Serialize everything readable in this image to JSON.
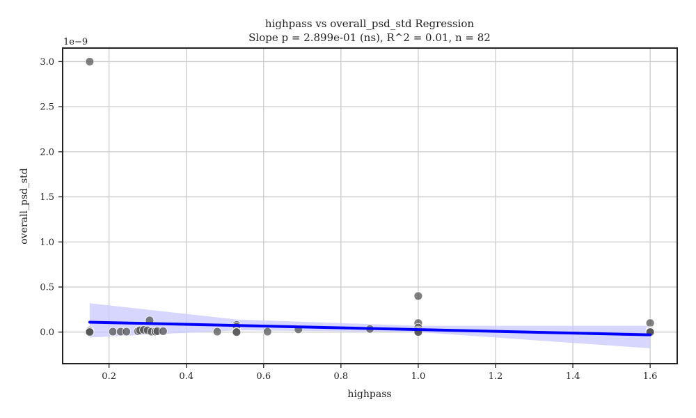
{
  "chart_data": {
    "type": "scatter",
    "title": "highpass vs overall_psd_std Regression",
    "subtitle": "Slope p = 2.899e-01 (ns), R^2 = 0.01, n = 82",
    "xlabel": "highpass",
    "ylabel": "overall_psd_std",
    "y_scale_label": "1e−9",
    "xlim": [
      0.08,
      1.67
    ],
    "ylim": [
      -0.35,
      3.15
    ],
    "x_ticks": [
      0.2,
      0.4,
      0.6,
      0.8,
      1.0,
      1.2,
      1.4,
      1.6
    ],
    "x_tick_labels": [
      "0.2",
      "0.4",
      "0.6",
      "0.8",
      "1.0",
      "1.2",
      "1.4",
      "1.6"
    ],
    "y_ticks": [
      0.0,
      0.5,
      1.0,
      1.5,
      2.0,
      2.5,
      3.0
    ],
    "y_tick_labels": [
      "0.0",
      "0.5",
      "1.0",
      "1.5",
      "2.0",
      "2.5",
      "3.0"
    ],
    "grid": true,
    "points": [
      {
        "x": 0.15,
        "y": 3.0
      },
      {
        "x": 0.15,
        "y": 0.02
      },
      {
        "x": 0.15,
        "y": 0.005
      },
      {
        "x": 0.15,
        "y": 0.01
      },
      {
        "x": 0.15,
        "y": 0.0
      },
      {
        "x": 0.21,
        "y": 0.005
      },
      {
        "x": 0.23,
        "y": 0.005
      },
      {
        "x": 0.245,
        "y": 0.005
      },
      {
        "x": 0.275,
        "y": 0.01
      },
      {
        "x": 0.28,
        "y": 0.02
      },
      {
        "x": 0.29,
        "y": 0.025
      },
      {
        "x": 0.3,
        "y": 0.02
      },
      {
        "x": 0.305,
        "y": 0.13
      },
      {
        "x": 0.31,
        "y": 0.005
      },
      {
        "x": 0.32,
        "y": 0.005
      },
      {
        "x": 0.325,
        "y": 0.01
      },
      {
        "x": 0.34,
        "y": 0.01
      },
      {
        "x": 0.48,
        "y": 0.005
      },
      {
        "x": 0.53,
        "y": 0.08
      },
      {
        "x": 0.53,
        "y": 0.06
      },
      {
        "x": 0.53,
        "y": 0.005
      },
      {
        "x": 0.53,
        "y": 0.0
      },
      {
        "x": 0.61,
        "y": 0.005
      },
      {
        "x": 0.69,
        "y": 0.03
      },
      {
        "x": 0.875,
        "y": 0.035
      },
      {
        "x": 1.0,
        "y": 0.4
      },
      {
        "x": 1.0,
        "y": 0.1
      },
      {
        "x": 1.0,
        "y": 0.05
      },
      {
        "x": 1.0,
        "y": 0.02
      },
      {
        "x": 1.0,
        "y": 0.005
      },
      {
        "x": 1.0,
        "y": 0.0
      },
      {
        "x": 1.6,
        "y": 0.1
      },
      {
        "x": 1.6,
        "y": 0.02
      },
      {
        "x": 1.6,
        "y": 0.01
      },
      {
        "x": 1.6,
        "y": 0.005
      },
      {
        "x": 1.6,
        "y": 0.0
      }
    ],
    "regression_line": {
      "x": [
        0.15,
        1.6
      ],
      "y": [
        0.11,
        -0.03
      ]
    },
    "confidence_band": {
      "x": [
        0.15,
        0.53,
        1.0,
        1.6
      ],
      "upper": [
        0.32,
        0.14,
        0.07,
        0.07
      ],
      "lower": [
        -0.06,
        0.02,
        0.0,
        -0.18
      ]
    },
    "colors": {
      "points": "#555555",
      "points_edge": "#ffffff",
      "regression": "#0000ff",
      "band": "#c8c8ff"
    }
  }
}
